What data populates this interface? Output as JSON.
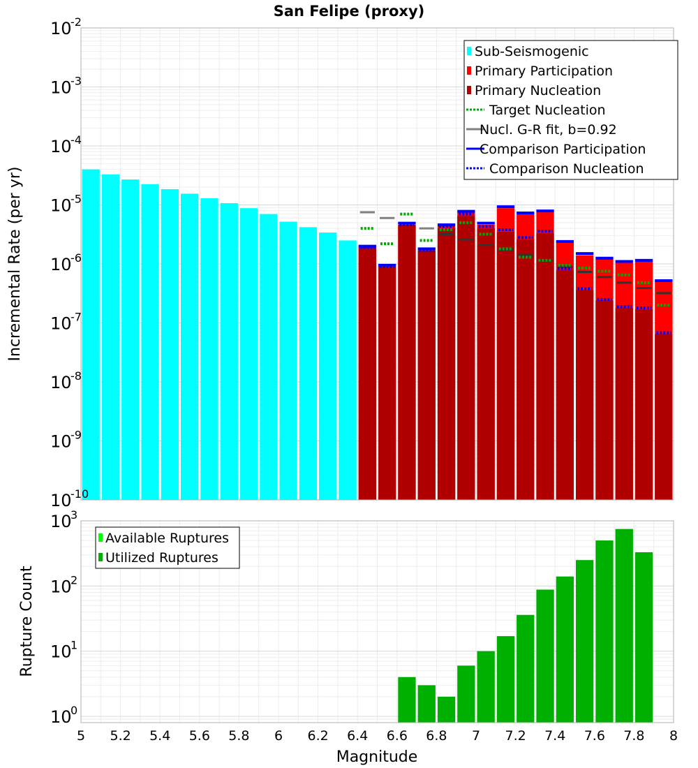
{
  "chart_data": [
    {
      "type": "bar",
      "title": "San Felipe (proxy)",
      "xlabel": "",
      "ylabel": "Incremental Rate (per yr)",
      "yscale": "log",
      "xlim": [
        5,
        8
      ],
      "ylim_exp": [
        -10,
        -2
      ],
      "y_ticks": [
        {
          "base": "10",
          "exp": "-2"
        },
        {
          "base": "10",
          "exp": "-3"
        },
        {
          "base": "10",
          "exp": "-4"
        },
        {
          "base": "10",
          "exp": "-5"
        },
        {
          "base": "10",
          "exp": "-6"
        },
        {
          "base": "10",
          "exp": "-7"
        },
        {
          "base": "10",
          "exp": "-8"
        },
        {
          "base": "10",
          "exp": "-9"
        },
        {
          "base": "10",
          "exp": "-10"
        }
      ],
      "bin_width": 0.1,
      "legend_position": "top-right",
      "legend": [
        {
          "label": "Sub-Seismogenic",
          "color": "#00ffff",
          "style": "box"
        },
        {
          "label": "Primary Participation",
          "color": "#ff0000",
          "style": "box"
        },
        {
          "label": "Primary Nucleation",
          "color": "#b00000",
          "style": "box"
        },
        {
          "label": "Target Nucleation",
          "color": "#00aa00",
          "style": "dotted"
        },
        {
          "label": "Nucl. G-R fit, b=0.92",
          "color": "#808080",
          "style": "solid"
        },
        {
          "label": "Comparison Participation",
          "color": "#0000ff",
          "style": "solid"
        },
        {
          "label": "Comparison Nucleation",
          "color": "#0000ff",
          "style": "dotted"
        }
      ],
      "series": [
        {
          "name": "Sub-Seismogenic",
          "color": "#00ffff",
          "x": [
            5.05,
            5.15,
            5.25,
            5.35,
            5.45,
            5.55,
            5.65,
            5.75,
            5.85,
            5.95,
            6.05,
            6.15,
            6.25,
            6.35
          ],
          "values": [
            4e-05,
            3.3e-05,
            2.7e-05,
            2.25e-05,
            1.85e-05,
            1.55e-05,
            1.3e-05,
            1.07e-05,
            8.8e-06,
            7e-06,
            5.2e-06,
            4.2e-06,
            3.4e-06,
            2.5e-06
          ]
        },
        {
          "name": "Primary Participation",
          "color": "#ff0000",
          "x": [
            6.45,
            6.55,
            6.65,
            6.75,
            6.85,
            6.95,
            7.05,
            7.15,
            7.25,
            7.35,
            7.45,
            7.55,
            7.65,
            7.75,
            7.85,
            7.95
          ],
          "values": [
            1.9e-06,
            9e-07,
            4.6e-06,
            1.7e-06,
            4.4e-06,
            7.5e-06,
            4.6e-06,
            8.8e-06,
            7e-06,
            7.5e-06,
            2.3e-06,
            1.4e-06,
            1.2e-06,
            1.05e-06,
            1.1e-06,
            5e-07
          ]
        },
        {
          "name": "Primary Nucleation",
          "color": "#b00000",
          "x": [
            6.45,
            6.55,
            6.65,
            6.75,
            6.85,
            6.95,
            7.05,
            7.15,
            7.25,
            7.35,
            7.45,
            7.55,
            7.65,
            7.75,
            7.85,
            7.95
          ],
          "values": [
            1.9e-06,
            9e-07,
            4.6e-06,
            1.7e-06,
            4e-06,
            6.5e-06,
            4e-06,
            3.5e-06,
            2.6e-06,
            3.3e-06,
            7.8e-07,
            3.6e-07,
            2.4e-07,
            1.8e-07,
            1.7e-07,
            6.5e-08
          ]
        },
        {
          "name": "Target Nucleation",
          "color": "#00aa00",
          "x": [
            6.45,
            6.55,
            6.65,
            6.75,
            6.85,
            6.95,
            7.05,
            7.15,
            7.25,
            7.35,
            7.45,
            7.55,
            7.65,
            7.75,
            7.85,
            7.95
          ],
          "values": [
            4e-06,
            2.2e-06,
            7e-06,
            2.5e-06,
            3.8e-06,
            5e-06,
            3.2e-06,
            1.8e-06,
            1.3e-06,
            1.15e-06,
            9.5e-07,
            8.5e-07,
            7.5e-07,
            6.5e-07,
            4.8e-07,
            2e-07
          ]
        },
        {
          "name": "Nucl. G-R fit, b=0.92",
          "color": "#808080",
          "x": [
            6.45,
            6.55,
            6.65,
            6.75,
            6.85,
            6.95,
            7.05,
            7.15,
            7.25,
            7.35,
            7.45,
            7.55,
            7.65,
            7.75,
            7.85,
            7.95
          ],
          "values": [
            7.5e-06,
            6e-06,
            4.8e-06,
            4e-06,
            3.2e-06,
            2.6e-06,
            2.1e-06,
            1.75e-06,
            1.4e-06,
            1.15e-06,
            9e-07,
            7.3e-07,
            6e-07,
            4.8e-07,
            3.9e-07,
            3.2e-07
          ]
        },
        {
          "name": "Comparison Participation",
          "color": "#0000ff",
          "x": [
            6.45,
            6.55,
            6.65,
            6.75,
            6.85,
            6.95,
            7.05,
            7.15,
            7.25,
            7.35,
            7.45,
            7.55,
            7.65,
            7.75,
            7.85,
            7.95
          ],
          "values": [
            2e-06,
            9.5e-07,
            4.9e-06,
            1.8e-06,
            4.6e-06,
            7.8e-06,
            4.9e-06,
            9.3e-06,
            7.3e-06,
            7.9e-06,
            2.4e-06,
            1.5e-06,
            1.25e-06,
            1.1e-06,
            1.15e-06,
            5.2e-07
          ]
        },
        {
          "name": "Comparison Nucleation",
          "color": "#0000ff",
          "x": [
            6.45,
            6.55,
            6.65,
            6.75,
            6.85,
            6.95,
            7.05,
            7.15,
            7.25,
            7.35,
            7.45,
            7.55,
            7.65,
            7.75,
            7.85,
            7.95
          ],
          "values": [
            1.9e-06,
            9e-07,
            4.6e-06,
            1.7e-06,
            4.3e-06,
            7e-06,
            4.3e-06,
            3.8e-06,
            2.8e-06,
            3.6e-06,
            8.3e-07,
            3.8e-07,
            2.5e-07,
            1.9e-07,
            1.8e-07,
            6.8e-08
          ]
        }
      ]
    },
    {
      "type": "bar",
      "title": "",
      "xlabel": "Magnitude",
      "ylabel": "Rupture Count",
      "yscale": "log",
      "xlim": [
        5,
        8
      ],
      "ylim": [
        0.8,
        1000
      ],
      "y_ticks": [
        {
          "base": "10",
          "exp": "0"
        },
        {
          "base": "10",
          "exp": "1"
        },
        {
          "base": "10",
          "exp": "2"
        },
        {
          "base": "10",
          "exp": "3"
        }
      ],
      "x_ticks": [
        "5",
        "5.2",
        "5.4",
        "5.6",
        "5.8",
        "6",
        "6.2",
        "6.4",
        "6.6",
        "6.8",
        "7",
        "7.2",
        "7.4",
        "7.6",
        "7.8",
        "8"
      ],
      "legend_position": "top-left",
      "legend": [
        {
          "label": "Available Ruptures",
          "color": "#00ff00",
          "style": "box"
        },
        {
          "label": "Utilized Ruptures",
          "color": "#00b000",
          "style": "box"
        }
      ],
      "series": [
        {
          "name": "Utilized Ruptures",
          "color": "#00b000",
          "x": [
            6.65,
            6.75,
            6.85,
            6.95,
            7.05,
            7.15,
            7.25,
            7.35,
            7.45,
            7.55,
            7.65,
            7.75,
            7.85
          ],
          "values": [
            4,
            3,
            2,
            6,
            10,
            17,
            36,
            88,
            140,
            250,
            500,
            750,
            330
          ]
        }
      ]
    }
  ]
}
